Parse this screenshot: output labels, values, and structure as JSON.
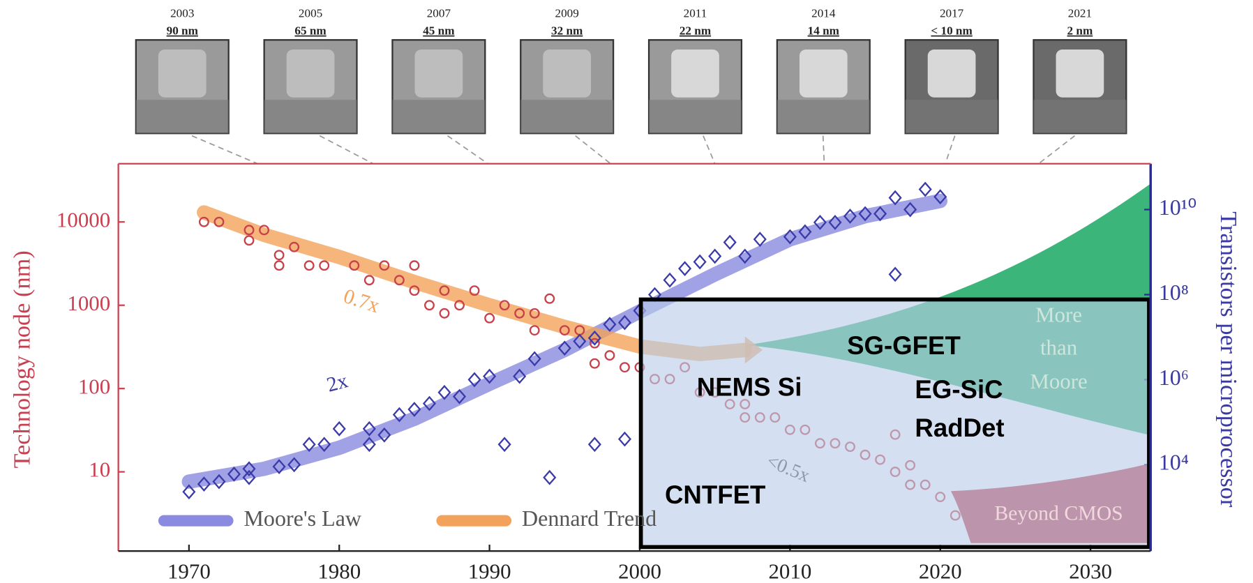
{
  "chart_data": {
    "type": "scatter",
    "thumbnails": [
      {
        "year": "2003",
        "node": "90 nm"
      },
      {
        "year": "2005",
        "node": "65 nm"
      },
      {
        "year": "2007",
        "node": "45 nm"
      },
      {
        "year": "2009",
        "node": "32 nm"
      },
      {
        "year": "2011",
        "node": "22 nm"
      },
      {
        "year": "2014",
        "node": "14 nm"
      },
      {
        "year": "2017",
        "node": "< 10 nm"
      },
      {
        "year": "2021",
        "node": "2 nm"
      }
    ],
    "ylabel": "Technology node (nm)",
    "y2label": "Transistors per microprocessor",
    "xlim": [
      1965.3,
      2034
    ],
    "xticks": [
      1970,
      1980,
      1990,
      2000,
      2010,
      2020,
      2030
    ],
    "ylim": [
      1.12,
      50000
    ],
    "yticks": [
      10,
      100,
      1000,
      10000
    ],
    "y2lim": [
      93,
      120000000000
    ],
    "y2ticks": [
      {
        "value": 10000,
        "label": "10⁴"
      },
      {
        "value": 1000000,
        "label": "10⁶"
      },
      {
        "value": 100000000,
        "label": "10⁸"
      },
      {
        "value": 10000000000,
        "label": "10¹⁰"
      }
    ],
    "log_scale": true,
    "series": [
      {
        "color": "#c8404a",
        "marker": "circle",
        "x": [
          1971,
          1972,
          1974,
          1974,
          1975,
          1976,
          1976,
          1977,
          1978,
          1979,
          1981,
          1982,
          1983,
          1984,
          1985,
          1985,
          1986,
          1987,
          1987,
          1988,
          1989,
          1990,
          1991,
          1992,
          1993,
          1993,
          1994,
          1995,
          1996,
          1997,
          1997,
          1998,
          1999,
          2000,
          2001,
          2002,
          2003,
          2004,
          2005,
          2006,
          2007,
          2007,
          2008,
          2009,
          2010,
          2011,
          2012,
          2013,
          2014,
          2015,
          2016,
          2017,
          2017,
          2018,
          2018,
          2019,
          2020,
          2021
        ],
        "values": [
          10000,
          10000,
          8000,
          6000,
          8000,
          4000,
          3000,
          5000,
          3000,
          3000,
          3000,
          2000,
          3000,
          2000,
          1500,
          3000,
          1000,
          1500,
          800,
          1000,
          1500,
          700,
          1000,
          800,
          800,
          500,
          1200,
          500,
          500,
          350,
          200,
          250,
          180,
          180,
          130,
          130,
          180,
          90,
          90,
          65,
          65,
          45,
          45,
          45,
          32,
          32,
          22,
          22,
          20,
          16,
          14,
          10,
          28,
          12,
          7,
          7,
          5,
          3
        ]
      },
      {
        "color": "#3a3aa8",
        "marker": "diamond",
        "axis": "y2",
        "x": [
          1970,
          1971,
          1972,
          1973,
          1974,
          1974,
          1976,
          1977,
          1978,
          1979,
          1980,
          1982,
          1982,
          1983,
          1984,
          1985,
          1986,
          1987,
          1988,
          1989,
          1990,
          1991,
          1992,
          1993,
          1994,
          1995,
          1996,
          1997,
          1997,
          1998,
          1999,
          1999,
          2000,
          2001,
          2002,
          2003,
          2004,
          2005,
          2006,
          2007,
          2008,
          2010,
          2011,
          2012,
          2013,
          2014,
          2015,
          2016,
          2017,
          2017,
          2018,
          2019,
          2020
        ],
        "values": [
          2300,
          3500,
          4000,
          6000,
          5000,
          8000,
          9000,
          10000,
          30000,
          30000,
          70000,
          70000,
          30000,
          50000,
          150000,
          200000,
          275000,
          500000,
          400000,
          1000000,
          1200000,
          30000,
          1200000,
          3100000,
          5000,
          5500000,
          8000000,
          9500000,
          30000,
          20000000,
          22000000,
          40000,
          42000000,
          100000000,
          220000000,
          410000000,
          590000000,
          800000000,
          1700000000,
          800000000,
          2000000000,
          2300000000,
          3000000000,
          5000000000,
          5000000000,
          7000000000,
          8000000000,
          8000000000,
          19000000000,
          300000000,
          10000000000,
          30000000000,
          20000000000
        ]
      }
    ],
    "trends": [
      {
        "name": "Moore's Law",
        "color": "#8a8ae0",
        "axis": "y2",
        "x": [
          1970,
          1975,
          1980,
          1985,
          1990,
          1995,
          2000,
          2005,
          2010,
          2015,
          2020
        ],
        "values": [
          4000,
          8000,
          25000,
          120000,
          800000,
          5000000,
          40000000,
          300000000,
          2000000000,
          7000000000,
          16000000000
        ]
      },
      {
        "name": "Dennard Trend",
        "color": "#f2a25a",
        "x": [
          1971,
          1975,
          1980,
          1985,
          1990,
          1995,
          2000,
          2004,
          2007
        ],
        "values": [
          13000,
          7000,
          3800,
          1900,
          1000,
          550,
          320,
          260,
          290
        ]
      }
    ],
    "annotations": {
      "dennard_rate": "0.7x",
      "moore_rate": "2x",
      "post_rate": "<0.5x",
      "more_than_moore": [
        "More",
        "than",
        "Moore"
      ],
      "beyond_cmos": "Beyond CMOS",
      "sg_gfet": "SG-GFET",
      "nems_si": "NEMS Si",
      "eg_sic": [
        "EG-SiC",
        "RadDet"
      ],
      "cntfet": "CNTFET"
    }
  }
}
